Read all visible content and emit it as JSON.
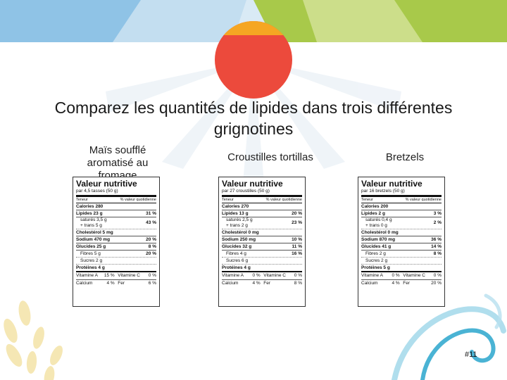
{
  "slide": {
    "title": "Comparez les quantités de lipides dans trois différentes grignotines",
    "page_number": "#11"
  },
  "colors": {
    "sun_orange": "#f5a623",
    "sun_red": "#ec4a3c",
    "band_blue": "#8fc3e6",
    "band_green": "#a8c94a",
    "accent_teal": "#4ab3d4"
  },
  "products": [
    {
      "caption": "Maïs soufflé aromatisé au fromage",
      "label": {
        "title": "Valeur nutritive",
        "serving": "par 4,5 tasses (50 g)",
        "head_left": "Teneur",
        "head_right": "% valeur quotidienne",
        "calories": "Calories 280",
        "lipides": "Lipides 23 g",
        "lipides_dv": "31 %",
        "satures": "saturés 3,5 g",
        "trans": "+ trans 5 g",
        "sat_dv": "43 %",
        "cholesterol": "Cholestérol 5 mg",
        "sodium": "Sodium 470 mg",
        "sodium_dv": "20 %",
        "glucides": "Glucides 25 g",
        "glucides_dv": "8 %",
        "fibres": "Fibres 5 g",
        "fibres_dv": "20 %",
        "sucres": "Sucres 2 g",
        "proteines": "Protéines 4 g",
        "vit_a": "Vitamine A",
        "vit_a_dv": "15 %",
        "vit_c": "Vitamine C",
        "vit_c_dv": "0 %",
        "calcium": "Calcium",
        "calcium_dv": "4 %",
        "fer": "Fer",
        "fer_dv": "6 %"
      }
    },
    {
      "caption": "Croustilles tortillas",
      "label": {
        "title": "Valeur nutritive",
        "serving": "par 27 croustilles (50 g)",
        "head_left": "Teneur",
        "head_right": "% valeur quotidienne",
        "calories": "Calories 270",
        "lipides": "Lipides 13 g",
        "lipides_dv": "20 %",
        "satures": "saturés 2,5 g",
        "trans": "+ trans 2 g",
        "sat_dv": "23 %",
        "cholesterol": "Cholestérol 0 mg",
        "sodium": "Sodium 250 mg",
        "sodium_dv": "10 %",
        "glucides": "Glucides 32 g",
        "glucides_dv": "11 %",
        "fibres": "Fibres 4 g",
        "fibres_dv": "16 %",
        "sucres": "Sucres 6 g",
        "proteines": "Protéines 4 g",
        "vit_a": "Vitamine A",
        "vit_a_dv": "0 %",
        "vit_c": "Vitamine C",
        "vit_c_dv": "0 %",
        "calcium": "Calcium",
        "calcium_dv": "4 %",
        "fer": "Fer",
        "fer_dv": "8 %"
      }
    },
    {
      "caption": "Bretzels",
      "label": {
        "title": "Valeur nutritive",
        "serving": "par 16 bretzels (50 g)",
        "head_left": "Teneur",
        "head_right": "% valeur quotidienne",
        "calories": "Calories 200",
        "lipides": "Lipides 2 g",
        "lipides_dv": "3 %",
        "satures": "saturés 0,4 g",
        "trans": "+ trans 0 g",
        "sat_dv": "2 %",
        "cholesterol": "Cholestérol 0 mg",
        "sodium": "Sodium 870 mg",
        "sodium_dv": "36 %",
        "glucides": "Glucides 41 g",
        "glucides_dv": "14 %",
        "fibres": "Fibres 2 g",
        "fibres_dv": "8 %",
        "sucres": "Sucres 2 g",
        "proteines": "Protéines 5 g",
        "vit_a": "Vitamine A",
        "vit_a_dv": "0 %",
        "vit_c": "Vitamine C",
        "vit_c_dv": "0 %",
        "calcium": "Calcium",
        "calcium_dv": "4 %",
        "fer": "Fer",
        "fer_dv": "20 %"
      }
    }
  ]
}
